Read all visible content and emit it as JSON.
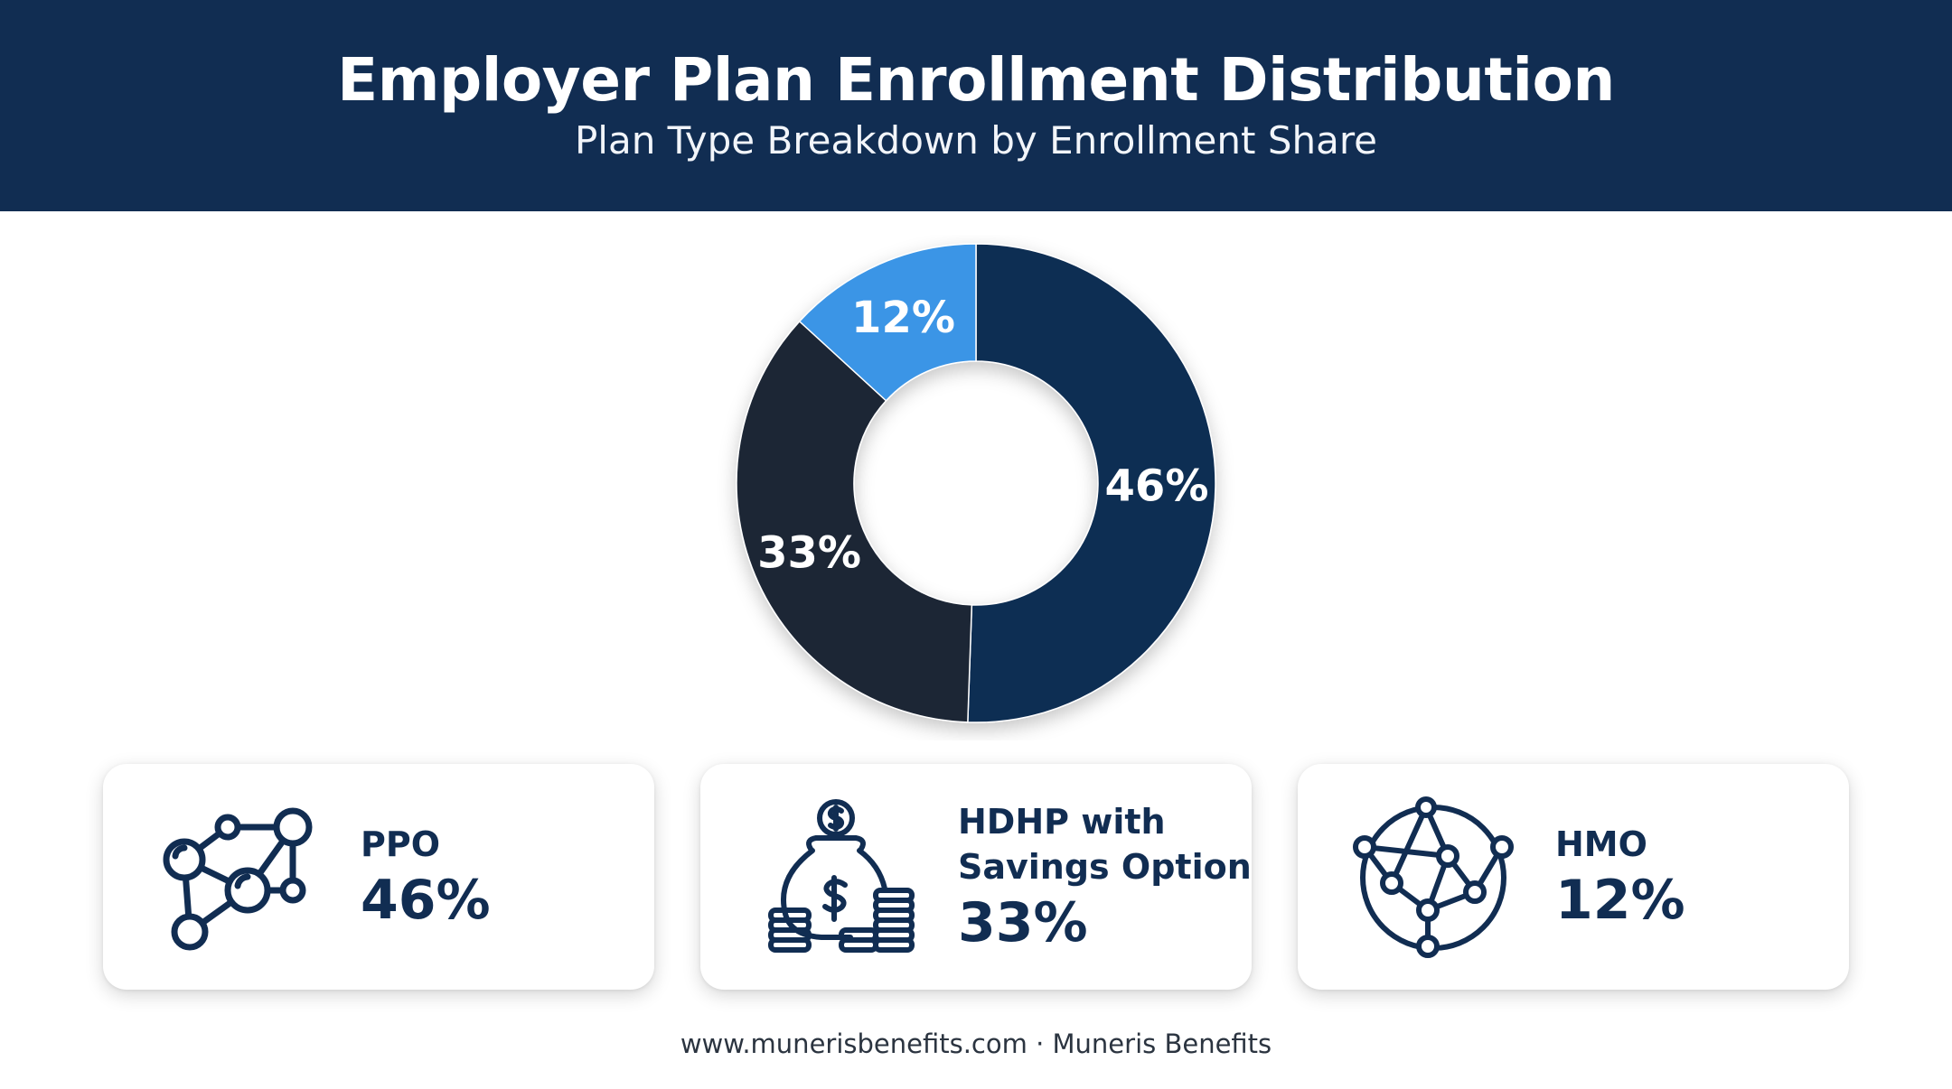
{
  "header": {
    "title": "Employer Plan Enrollment Distribution",
    "subtitle": "Plan Type Breakdown by Enrollment Share"
  },
  "chart_data": {
    "type": "pie",
    "variant": "donut",
    "title": "Employer Plan Enrollment Distribution",
    "subtitle": "Plan Type Breakdown by Enrollment Share",
    "categories": [
      "PPO",
      "HDHP with Savings Option",
      "HMO"
    ],
    "values": [
      46,
      33,
      12
    ],
    "labels": [
      "46%",
      "33%",
      "12%"
    ],
    "colors": [
      "#112d52",
      "#1c2636",
      "#3b95e6"
    ],
    "start_angle": "12 o'clock, clockwise",
    "legend": "cards below chart"
  },
  "cards": [
    {
      "label_lines": [
        "PPO"
      ],
      "value": "46%",
      "icon": "network-nodes-icon"
    },
    {
      "label_lines": [
        "HDHP with",
        "Savings Option"
      ],
      "value": "33%",
      "icon": "savings-money-bag-icon"
    },
    {
      "label_lines": [
        "HMO"
      ],
      "value": "12%",
      "icon": "globe-network-icon"
    }
  ],
  "colors": {
    "primary": "#112d52",
    "accent": "#3b95e6",
    "dark": "#1c2636",
    "text": "#112d52"
  },
  "footer": {
    "text": "www.munerisbenefits.com · Muneris Benefits"
  }
}
